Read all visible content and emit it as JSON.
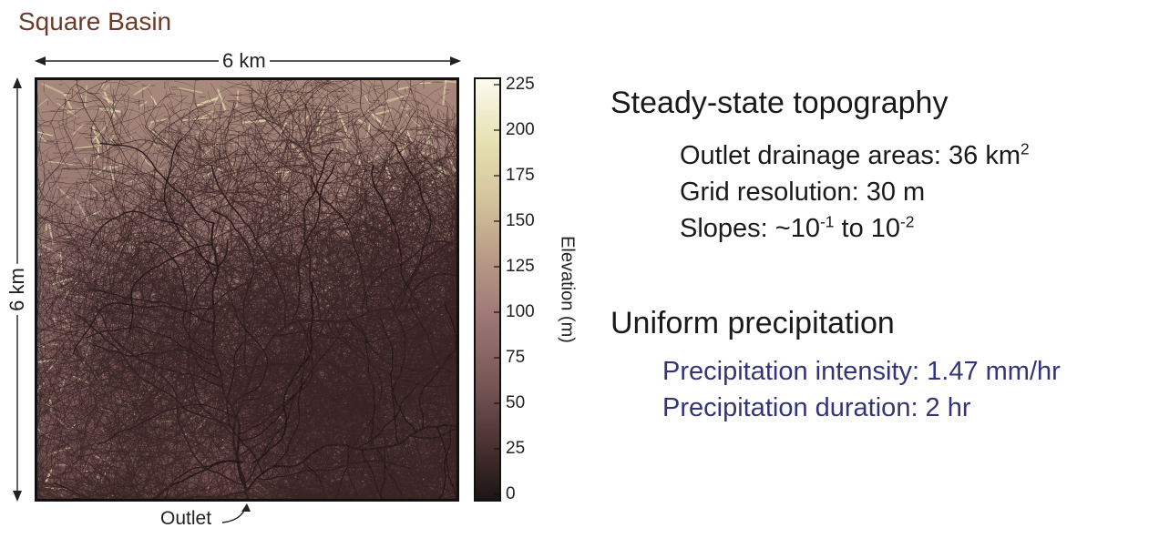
{
  "title": "Square Basin",
  "dimensions": {
    "width_label": "6 km",
    "height_label": "6 km"
  },
  "outlet_label": "Outlet",
  "colorbar": {
    "title": "Elevation (m)",
    "ticks": [
      "225",
      "200",
      "175",
      "150",
      "125",
      "100",
      "75",
      "50",
      "25",
      "0"
    ],
    "range": [
      0,
      225
    ],
    "colors": [
      "#1c1414",
      "#4e3434",
      "#7a5858",
      "#9c7676",
      "#b89a86",
      "#d4c49c",
      "#e8e2b4",
      "#fbfbf1"
    ]
  },
  "info": {
    "topography": {
      "heading": "Steady-state topography",
      "drainage_prefix": "Outlet drainage areas: 36 km",
      "drainage_sup": "2",
      "grid": "Grid resolution: 30 m",
      "slopes_prefix": "Slopes: ~10",
      "slopes_sup1": "-1",
      "slopes_mid": " to 10",
      "slopes_sup2": "-2"
    },
    "precipitation": {
      "heading": "Uniform precipitation",
      "intensity": "Precipitation intensity: 1.47 mm/hr",
      "duration": "Precipitation duration: 2 hr"
    }
  }
}
